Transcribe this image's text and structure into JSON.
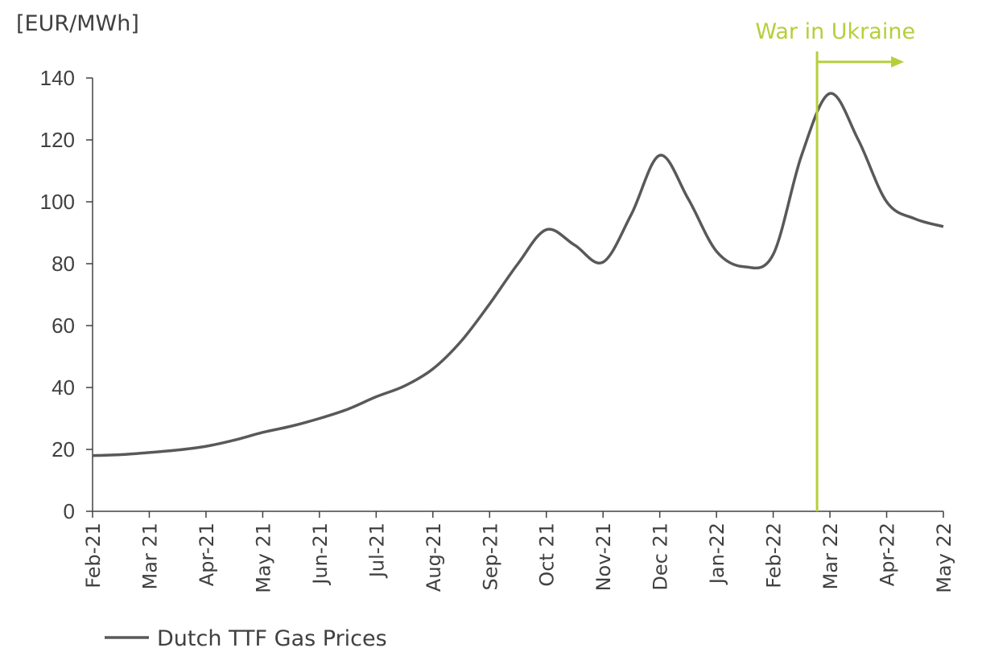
{
  "chart_data": {
    "type": "line",
    "y_label": "[EUR/MWh]",
    "categories": [
      "Feb-21",
      null,
      "Mar 21",
      null,
      "Apr-21",
      null,
      "May 21",
      null,
      "Jun-21",
      null,
      "Jul-21",
      null,
      "Aug-21",
      null,
      "Sep-21",
      null,
      "Oct 21",
      null,
      "Nov-21",
      null,
      "Dec 21",
      null,
      "Jan-22",
      null,
      "Feb-22",
      null,
      "Mar 22",
      null,
      "Apr-22",
      null,
      "May 22"
    ],
    "series": [
      {
        "name": "Dutch TTF Gas Prices",
        "color": "#595959",
        "values": [
          18,
          18.3,
          19,
          19.8,
          21,
          23,
          25.5,
          27.5,
          30,
          33,
          37,
          40.5,
          46,
          55,
          67,
          80,
          91,
          86,
          80.5,
          96,
          115,
          101,
          84,
          79,
          83,
          115,
          135,
          120,
          100,
          94.5,
          92
        ]
      }
    ],
    "ylim": [
      0,
      140
    ],
    "yticks": [
      0,
      20,
      40,
      60,
      80,
      100,
      120,
      140
    ],
    "annotation": {
      "text": "War in Ukraine",
      "color": "#b5cf3a"
    },
    "legend": "bottom-left"
  }
}
